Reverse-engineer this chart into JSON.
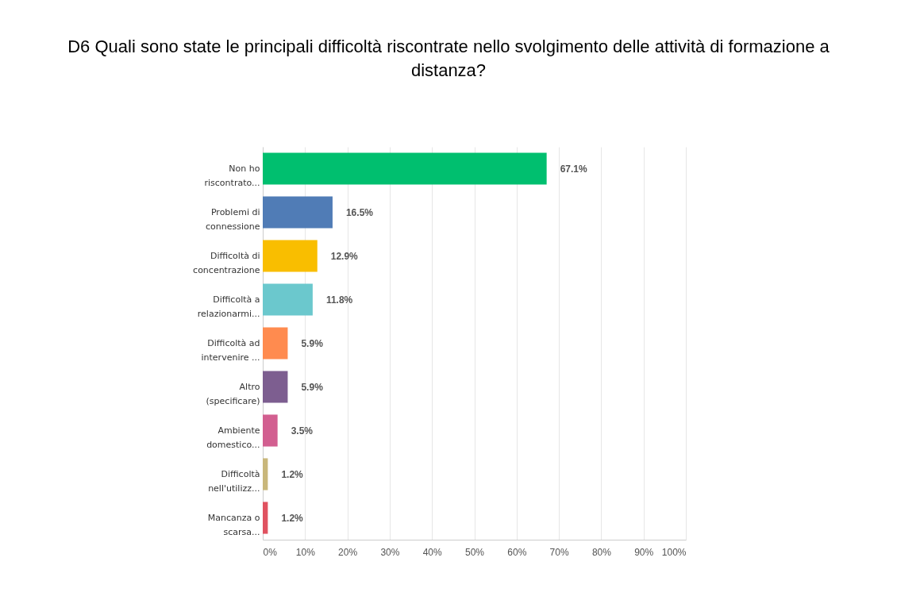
{
  "chart_data": {
    "type": "bar",
    "orientation": "horizontal",
    "title": "D6 Quali sono state le principali difficoltà riscontrate nello svolgimento delle attività di formazione a distanza?",
    "categories": [
      "Non ho\nriscontrato...",
      "Problemi di\nconnessione",
      "Difficoltà di\nconcentrazione",
      "Difficoltà a\nrelazionarmi...",
      "Difficoltà ad\nintervenire ...",
      "Altro\n(specificare)",
      "Ambiente\ndomestico...",
      "Difficoltà\nnell'utilizz...",
      "Mancanza o\nscarsa..."
    ],
    "values": [
      67.1,
      16.5,
      12.9,
      11.8,
      5.9,
      5.9,
      3.5,
      1.2,
      1.2
    ],
    "value_labels": [
      "67.1%",
      "16.5%",
      "12.9%",
      "11.8%",
      "5.9%",
      "5.9%",
      "3.5%",
      "1.2%",
      "1.2%"
    ],
    "colors": [
      "#00bf6f",
      "#507cb6",
      "#f9be00",
      "#6bc8cd",
      "#ff8b4f",
      "#7d5e90",
      "#d25f90",
      "#c9b77b",
      "#e05260"
    ],
    "xlim": [
      0,
      100
    ],
    "xticks": [
      {
        "value": 0,
        "label": "0%"
      },
      {
        "value": 10,
        "label": "10%"
      },
      {
        "value": 20,
        "label": "20%"
      },
      {
        "value": 30,
        "label": "30%"
      },
      {
        "value": 40,
        "label": "40%"
      },
      {
        "value": 50,
        "label": "50%"
      },
      {
        "value": 60,
        "label": "60%"
      },
      {
        "value": 70,
        "label": "70%"
      },
      {
        "value": 80,
        "label": "80%"
      },
      {
        "value": 90,
        "label": "90%"
      },
      {
        "value": 100,
        "label": "100%"
      }
    ],
    "grid": "x"
  }
}
